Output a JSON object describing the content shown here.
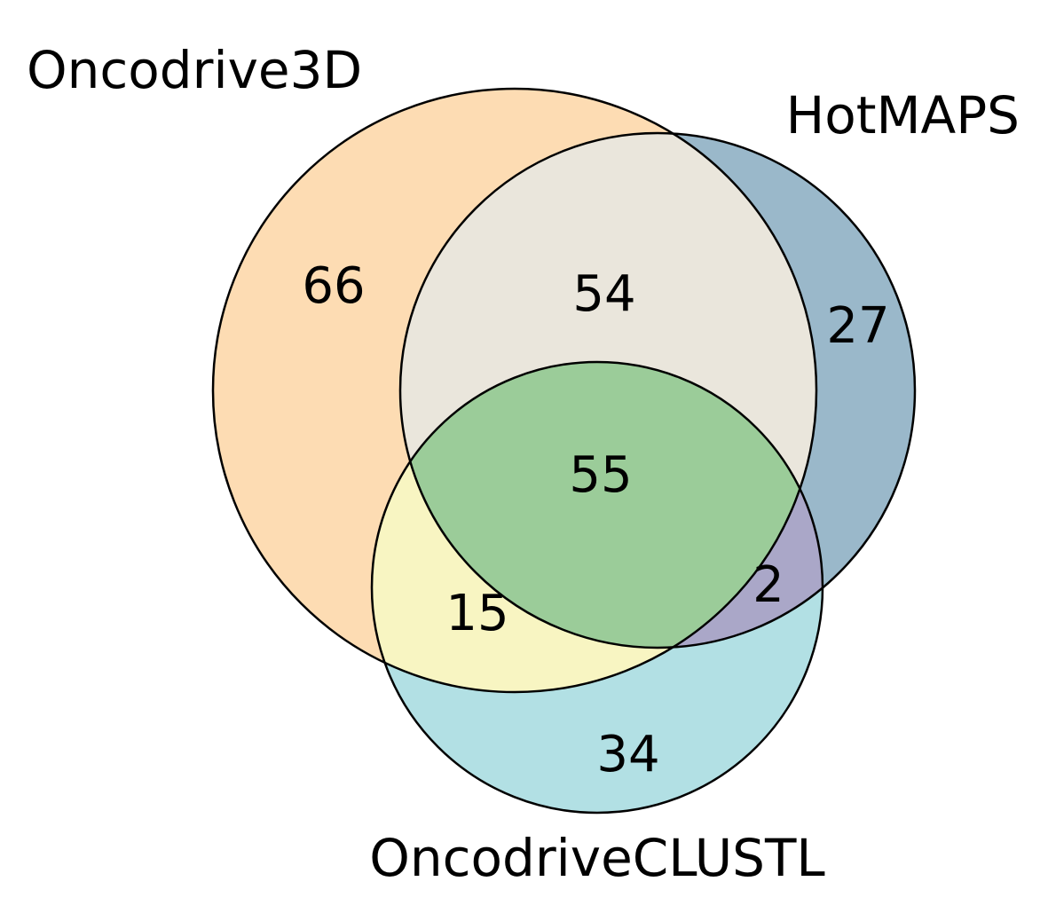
{
  "colors": {
    "set_a_only": "#fddcb3",
    "set_b_only": "#9ab8ca",
    "set_c_only": "#b2e0e4",
    "a_and_b": "#eae6dc",
    "a_and_c": "#f8f5c2",
    "b_and_c": "#aaa7c8",
    "a_b_c": "#9bcc99",
    "outline": "#000000"
  },
  "sets": {
    "a": "Oncodrive3D",
    "b": "HotMAPS",
    "c": "OncodriveCLUSTL"
  },
  "regions": {
    "a_only": "66",
    "b_only": "27",
    "c_only": "34",
    "a_and_b": "54",
    "a_and_c": "15",
    "b_and_c": "2",
    "a_b_c": "55"
  }
}
